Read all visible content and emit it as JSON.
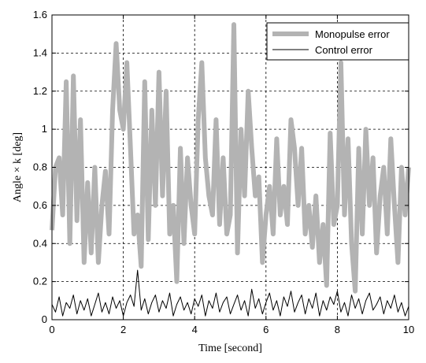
{
  "chart_data": {
    "type": "line",
    "title": "",
    "xlabel": "Time [second]",
    "ylabel": "Angle × k [deg]",
    "xlim": [
      0,
      10
    ],
    "ylim": [
      0,
      1.6
    ],
    "xticks": [
      0,
      2,
      4,
      6,
      8,
      10
    ],
    "xtick_labels": [
      "0",
      "2",
      "4",
      "6",
      "8",
      "10"
    ],
    "yticks": [
      0,
      0.2,
      0.4,
      0.6,
      0.8,
      1,
      1.2,
      1.4,
      1.6
    ],
    "ytick_labels": [
      "0",
      "0.2",
      "0.4",
      "0.6",
      "0.8",
      "1",
      "1.2",
      "1.4",
      "1.6"
    ],
    "grid": true,
    "legend_position": "top-right",
    "series": [
      {
        "name": "Monopulse error",
        "color": "#b3b3b3",
        "x": [
          0,
          0.1,
          0.2,
          0.3,
          0.4,
          0.5,
          0.6,
          0.7,
          0.8,
          0.9,
          1.0,
          1.1,
          1.2,
          1.3,
          1.4,
          1.5,
          1.6,
          1.7,
          1.8,
          1.9,
          2.0,
          2.1,
          2.2,
          2.3,
          2.4,
          2.5,
          2.6,
          2.7,
          2.8,
          2.9,
          3.0,
          3.1,
          3.2,
          3.3,
          3.4,
          3.5,
          3.6,
          3.7,
          3.8,
          3.9,
          4.0,
          4.1,
          4.2,
          4.3,
          4.4,
          4.5,
          4.6,
          4.7,
          4.8,
          4.9,
          5.0,
          5.1,
          5.2,
          5.3,
          5.4,
          5.5,
          5.6,
          5.7,
          5.8,
          5.9,
          6.0,
          6.1,
          6.2,
          6.3,
          6.4,
          6.5,
          6.6,
          6.7,
          6.8,
          6.9,
          7.0,
          7.1,
          7.2,
          7.3,
          7.4,
          7.5,
          7.6,
          7.7,
          7.8,
          7.9,
          8.0,
          8.1,
          8.2,
          8.3,
          8.4,
          8.5,
          8.6,
          8.7,
          8.8,
          8.9,
          9.0,
          9.1,
          9.2,
          9.3,
          9.4,
          9.5,
          9.6,
          9.7,
          9.8,
          9.9,
          10.0
        ],
        "values": [
          0.47,
          0.8,
          0.85,
          0.55,
          1.25,
          0.4,
          1.28,
          0.52,
          1.05,
          0.3,
          0.72,
          0.35,
          0.8,
          0.3,
          0.6,
          0.78,
          0.45,
          1.1,
          1.45,
          1.1,
          1.0,
          1.35,
          0.9,
          0.45,
          0.55,
          0.28,
          1.25,
          0.42,
          1.1,
          0.6,
          1.3,
          0.65,
          1.2,
          0.45,
          0.6,
          0.2,
          0.9,
          0.4,
          0.85,
          0.6,
          0.45,
          1.05,
          1.35,
          0.85,
          0.65,
          0.55,
          1.05,
          0.5,
          0.85,
          0.45,
          0.55,
          1.55,
          0.35,
          1.0,
          0.65,
          1.2,
          0.9,
          0.65,
          0.75,
          0.3,
          0.55,
          0.7,
          0.45,
          0.95,
          0.55,
          0.7,
          0.5,
          1.05,
          0.9,
          0.6,
          0.9,
          0.45,
          0.6,
          0.38,
          0.65,
          0.3,
          0.5,
          0.18,
          0.98,
          0.5,
          0.6,
          1.35,
          0.55,
          0.95,
          0.4,
          0.15,
          0.9,
          0.45,
          1.0,
          0.6,
          0.85,
          0.35,
          0.65,
          0.8,
          0.45,
          0.95,
          0.6,
          0.3,
          0.8,
          0.55,
          0.8
        ]
      },
      {
        "name": "Control error",
        "color": "#000000",
        "x": [
          0,
          0.1,
          0.2,
          0.3,
          0.4,
          0.5,
          0.6,
          0.7,
          0.8,
          0.9,
          1.0,
          1.1,
          1.2,
          1.3,
          1.4,
          1.5,
          1.6,
          1.7,
          1.8,
          1.9,
          2.0,
          2.1,
          2.2,
          2.3,
          2.4,
          2.5,
          2.6,
          2.7,
          2.8,
          2.9,
          3.0,
          3.1,
          3.2,
          3.3,
          3.4,
          3.5,
          3.6,
          3.7,
          3.8,
          3.9,
          4.0,
          4.1,
          4.2,
          4.3,
          4.4,
          4.5,
          4.6,
          4.7,
          4.8,
          4.9,
          5.0,
          5.1,
          5.2,
          5.3,
          5.4,
          5.5,
          5.6,
          5.7,
          5.8,
          5.9,
          6.0,
          6.1,
          6.2,
          6.3,
          6.4,
          6.5,
          6.6,
          6.7,
          6.8,
          6.9,
          7.0,
          7.1,
          7.2,
          7.3,
          7.4,
          7.5,
          7.6,
          7.7,
          7.8,
          7.9,
          8.0,
          8.1,
          8.2,
          8.3,
          8.4,
          8.5,
          8.6,
          8.7,
          8.8,
          8.9,
          9.0,
          9.1,
          9.2,
          9.3,
          9.4,
          9.5,
          9.6,
          9.7,
          9.8,
          9.9,
          10.0
        ],
        "values": [
          0.08,
          0.04,
          0.12,
          0.02,
          0.09,
          0.06,
          0.13,
          0.03,
          0.1,
          0.05,
          0.11,
          0.02,
          0.08,
          0.14,
          0.04,
          0.09,
          0.03,
          0.12,
          0.06,
          0.1,
          0.02,
          0.09,
          0.13,
          0.07,
          0.26,
          0.05,
          0.11,
          0.03,
          0.09,
          0.13,
          0.04,
          0.1,
          0.06,
          0.14,
          0.02,
          0.08,
          0.12,
          0.05,
          0.09,
          0.03,
          0.11,
          0.07,
          0.13,
          0.02,
          0.1,
          0.06,
          0.14,
          0.04,
          0.09,
          0.12,
          0.03,
          0.08,
          0.13,
          0.05,
          0.1,
          0.02,
          0.16,
          0.06,
          0.11,
          0.03,
          0.09,
          0.14,
          0.05,
          0.1,
          0.02,
          0.12,
          0.07,
          0.15,
          0.04,
          0.09,
          0.13,
          0.03,
          0.11,
          0.06,
          0.14,
          0.02,
          0.1,
          0.05,
          0.12,
          0.08,
          0.15,
          0.04,
          0.09,
          0.02,
          0.13,
          0.06,
          0.11,
          0.03,
          0.1,
          0.14,
          0.05,
          0.08,
          0.12,
          0.03,
          0.1,
          0.06,
          0.13,
          0.04,
          0.09,
          0.02,
          0.07
        ]
      }
    ]
  }
}
